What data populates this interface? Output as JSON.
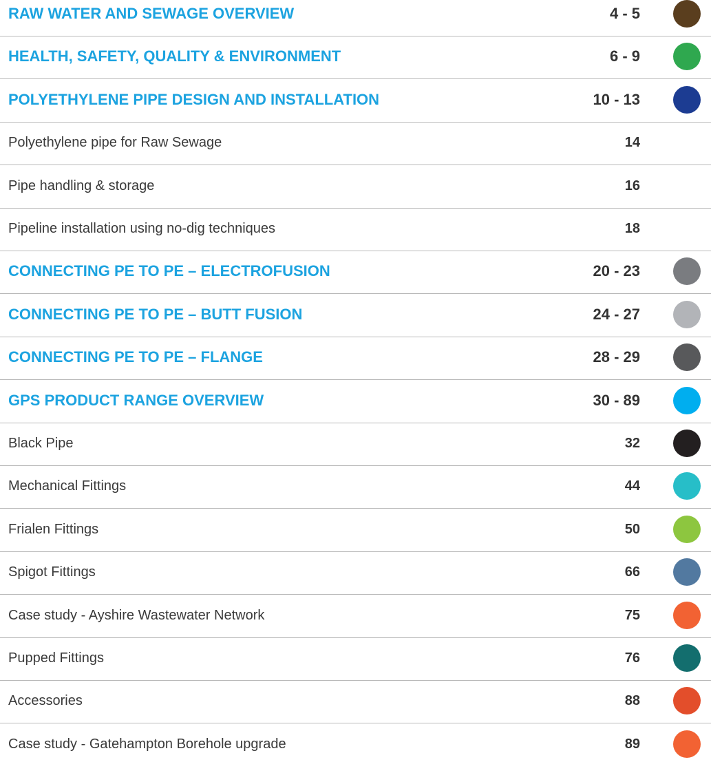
{
  "toc": {
    "entries": [
      {
        "title": "RAW WATER AND SEWAGE OVERVIEW",
        "pages": "4 - 5",
        "level": 1,
        "color": "#5a3e1e"
      },
      {
        "title": "HEALTH, SAFETY, QUALITY & ENVIRONMENT",
        "pages": "6 - 9",
        "level": 1,
        "color": "#2fa84f"
      },
      {
        "title": "POLYETHYLENE PIPE DESIGN AND INSTALLATION",
        "pages": "10 - 13",
        "level": 1,
        "color": "#1c3c92"
      },
      {
        "title": "Polyethylene pipe for Raw Sewage",
        "pages": "14",
        "level": 2,
        "color": null
      },
      {
        "title": "Pipe handling & storage",
        "pages": "16",
        "level": 2,
        "color": null
      },
      {
        "title": "Pipeline installation using no-dig techniques",
        "pages": "18",
        "level": 2,
        "color": null
      },
      {
        "title": "CONNECTING PE TO PE – ELECTROFUSION",
        "pages": "20 - 23",
        "level": 1,
        "color": "#7a7c80"
      },
      {
        "title": "CONNECTING PE TO PE – BUTT FUSION",
        "pages": "24 - 27",
        "level": 1,
        "color": "#b2b4b8"
      },
      {
        "title": "CONNECTING PE TO PE – FLANGE",
        "pages": "28 - 29",
        "level": 1,
        "color": "#58595b"
      },
      {
        "title": "GPS PRODUCT RANGE OVERVIEW",
        "pages": "30 - 89",
        "level": 1,
        "color": "#00aeef"
      },
      {
        "title": "Black Pipe",
        "pages": "32",
        "level": 2,
        "color": "#231f20"
      },
      {
        "title": "Mechanical Fittings",
        "pages": "44",
        "level": 2,
        "color": "#27bec8"
      },
      {
        "title": "Frialen Fittings",
        "pages": "50",
        "level": 2,
        "color": "#8dc63f"
      },
      {
        "title": "Spigot Fittings",
        "pages": "66",
        "level": 2,
        "color": "#5279a0"
      },
      {
        "title": "Case study - Ayshire Wastewater Network",
        "pages": "75",
        "level": 2,
        "color": "#f26233"
      },
      {
        "title": "Pupped Fittings",
        "pages": "76",
        "level": 2,
        "color": "#136e6e"
      },
      {
        "title": "Accessories",
        "pages": "88",
        "level": 2,
        "color": "#e34e2b"
      },
      {
        "title": "Case study - Gatehampton Borehole upgrade",
        "pages": "89",
        "level": 2,
        "color": "#f26233"
      }
    ]
  }
}
